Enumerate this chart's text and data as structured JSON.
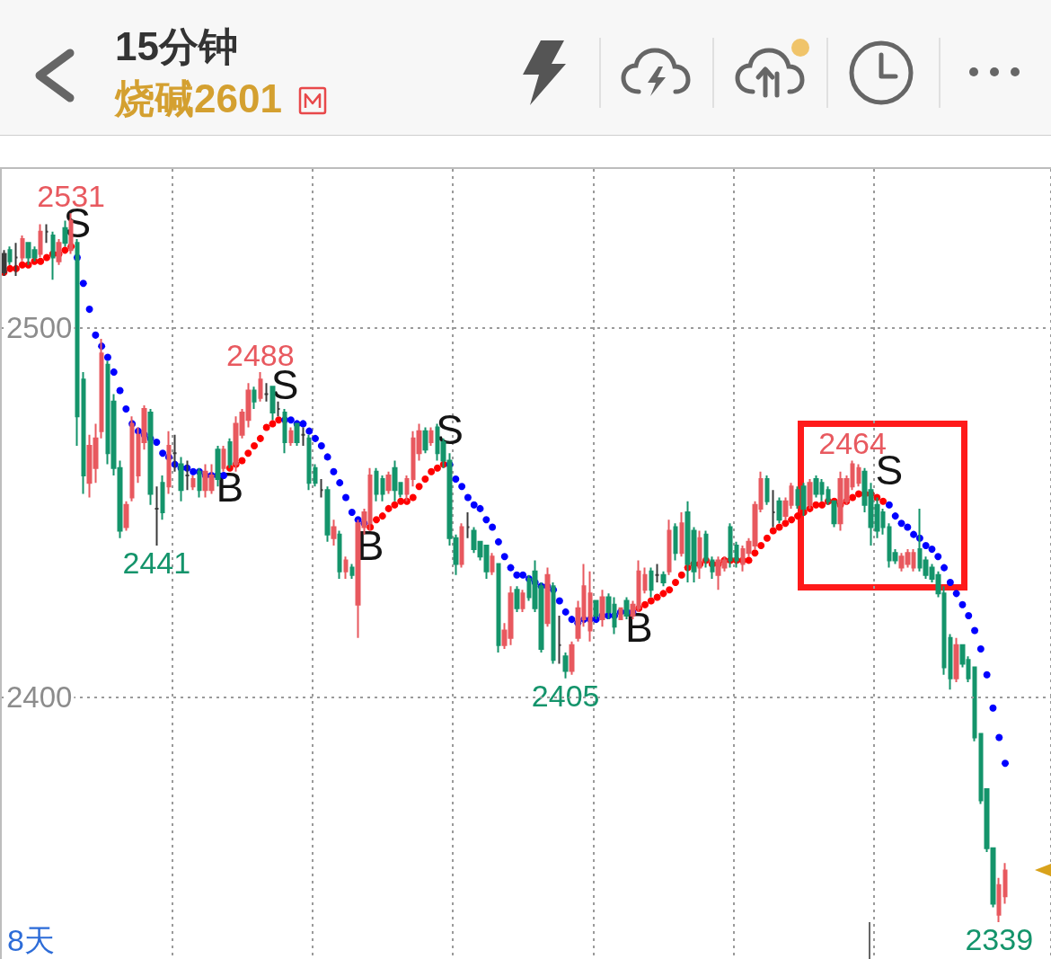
{
  "chart_data": {
    "type": "candlestick",
    "title": "15分钟",
    "subtitle": "烧碱2601",
    "annotations": [
      "8天"
    ],
    "categories": [
      null,
      null,
      null,
      null,
      null,
      null,
      null,
      null,
      null,
      null,
      null,
      null,
      null,
      null,
      null,
      null,
      null,
      null,
      null,
      null,
      null,
      null,
      null,
      null,
      null,
      null,
      null,
      null,
      null,
      null,
      null,
      null,
      null,
      null,
      null,
      null,
      null,
      null,
      null,
      null,
      null,
      null,
      null,
      null,
      null,
      null,
      null,
      null,
      null,
      null,
      null,
      null,
      null,
      null,
      null,
      null,
      null,
      null,
      null,
      null,
      null,
      null,
      null,
      null,
      null,
      null,
      null,
      null,
      null,
      null,
      null,
      null,
      null,
      null,
      null,
      null,
      null,
      null,
      null,
      null,
      null,
      null,
      null,
      null,
      null,
      null,
      null,
      null,
      null,
      null,
      null,
      null,
      null,
      null,
      null,
      null,
      null,
      null,
      null,
      null,
      null,
      null,
      null,
      null,
      null,
      null,
      null,
      null,
      null,
      null,
      null,
      null,
      null,
      null,
      null,
      null,
      null,
      null,
      null,
      null,
      null,
      null,
      null,
      null,
      null,
      null,
      null,
      null,
      null,
      null,
      null,
      null,
      null,
      null,
      null,
      null,
      null,
      null,
      null,
      null,
      null,
      null,
      null,
      null,
      null,
      null,
      null,
      null,
      null,
      null,
      null,
      null,
      null,
      null,
      null,
      null,
      null,
      null,
      null,
      null,
      null,
      null,
      null,
      null,
      null
    ],
    "ohlc": [
      [
        2520,
        2521,
        2514,
        2515
      ],
      [
        2521,
        2522,
        2517,
        2518
      ],
      [
        2519,
        2523,
        2514,
        2519
      ],
      [
        2519,
        2525,
        2518,
        2524
      ],
      [
        2523,
        2523,
        2517,
        2519
      ],
      [
        2521,
        2522,
        2518,
        2519
      ],
      [
        2520,
        2528,
        2519,
        2526
      ],
      [
        2526,
        2528,
        2523,
        2526
      ],
      [
        2525,
        2526,
        2513,
        2519
      ],
      [
        2518,
        2524,
        2517,
        2523
      ],
      [
        2527,
        2529,
        2522,
        2523
      ],
      [
        2521,
        2531,
        2520,
        2529
      ],
      [
        2523,
        2524,
        2468,
        2476
      ],
      [
        2486,
        2488,
        2455,
        2460
      ],
      [
        2458,
        2471,
        2454,
        2468
      ],
      [
        2462,
        2474,
        2458,
        2470
      ],
      [
        2472,
        2497,
        2470,
        2493
      ],
      [
        2490,
        2491,
        2463,
        2466
      ],
      [
        2480,
        2482,
        2460,
        2462
      ],
      [
        2462,
        2464,
        2443,
        2445
      ],
      [
        2446,
        2453,
        2445,
        2452
      ],
      [
        2454,
        2476,
        2453,
        2474
      ],
      [
        2460,
        2473,
        2458,
        2471
      ],
      [
        2469,
        2479,
        2467,
        2478
      ],
      [
        2477,
        2478,
        2452,
        2455
      ],
      [
        2451,
        2457,
        2441,
        2451
      ],
      [
        2458,
        2460,
        2448,
        2450
      ],
      [
        2457,
        2472,
        2455,
        2468
      ],
      [
        2466,
        2471,
        2461,
        2466
      ],
      [
        2463,
        2465,
        2453,
        2456
      ],
      [
        2460,
        2464,
        2456,
        2460
      ],
      [
        2457,
        2460,
        2456,
        2459
      ],
      [
        2461,
        2462,
        2454,
        2456
      ],
      [
        2456,
        2463,
        2454,
        2461
      ],
      [
        2456,
        2463,
        2455,
        2460
      ],
      [
        2467,
        2468,
        2457,
        2459
      ],
      [
        2462,
        2468,
        2461,
        2467
      ],
      [
        2469,
        2470,
        2462,
        2463
      ],
      [
        2463,
        2476,
        2461,
        2474
      ],
      [
        2471,
        2478,
        2470,
        2477
      ],
      [
        2475,
        2485,
        2473,
        2483
      ],
      [
        2483,
        2484,
        2478,
        2480
      ],
      [
        2481,
        2488,
        2480,
        2486
      ],
      [
        2482,
        2485,
        2480,
        2482
      ],
      [
        2484,
        2484,
        2475,
        2477
      ],
      [
        2478,
        2480,
        2476,
        2478
      ],
      [
        2477,
        2478,
        2466,
        2469
      ],
      [
        2469,
        2473,
        2468,
        2472
      ],
      [
        2474,
        2474,
        2468,
        2469
      ],
      [
        2471,
        2473,
        2468,
        2471
      ],
      [
        2470,
        2471,
        2456,
        2458
      ],
      [
        2462,
        2463,
        2457,
        2458
      ],
      [
        2456,
        2459,
        2454,
        2456
      ],
      [
        2456,
        2457,
        2442,
        2444
      ],
      [
        2443,
        2448,
        2441,
        2446
      ],
      [
        2444,
        2445,
        2432,
        2434
      ],
      [
        2434,
        2438,
        2432,
        2437
      ],
      [
        2435,
        2436,
        2432,
        2433
      ],
      [
        2425,
        2448,
        2416,
        2447
      ],
      [
        2446,
        2451,
        2444,
        2450
      ],
      [
        2447,
        2462,
        2445,
        2460
      ],
      [
        2461,
        2462,
        2453,
        2455
      ],
      [
        2459,
        2460,
        2453,
        2455
      ],
      [
        2456,
        2461,
        2455,
        2460
      ],
      [
        2462,
        2464,
        2453,
        2456
      ],
      [
        2458,
        2458,
        2454,
        2455
      ],
      [
        2455,
        2460,
        2453,
        2459
      ],
      [
        2459,
        2472,
        2457,
        2470
      ],
      [
        2466,
        2474,
        2464,
        2472
      ],
      [
        2472,
        2473,
        2466,
        2467
      ],
      [
        2469,
        2473,
        2468,
        2472
      ],
      [
        2473,
        2474,
        2464,
        2466
      ],
      [
        2469,
        2470,
        2462,
        2464
      ],
      [
        2464,
        2466,
        2441,
        2443
      ],
      [
        2443,
        2444,
        2433,
        2436
      ],
      [
        2436,
        2447,
        2435,
        2446
      ],
      [
        2446,
        2450,
        2443,
        2446
      ],
      [
        2445,
        2446,
        2439,
        2440
      ],
      [
        2442,
        2442,
        2437,
        2438
      ],
      [
        2441,
        2441,
        2432,
        2434
      ],
      [
        2434,
        2439,
        2433,
        2438
      ],
      [
        2436,
        2436,
        2412,
        2414
      ],
      [
        2414,
        2420,
        2413,
        2418
      ],
      [
        2416,
        2430,
        2414,
        2428
      ],
      [
        2429,
        2430,
        2423,
        2424
      ],
      [
        2424,
        2429,
        2423,
        2428
      ],
      [
        2432,
        2433,
        2426,
        2427
      ],
      [
        2434,
        2437,
        2423,
        2424
      ],
      [
        2430,
        2431,
        2412,
        2413
      ],
      [
        2420,
        2435,
        2419,
        2433
      ],
      [
        2430,
        2431,
        2409,
        2410
      ],
      [
        2414,
        2422,
        2409,
        2414
      ],
      [
        2411,
        2412,
        2405,
        2407
      ],
      [
        2407,
        2415,
        2406,
        2414
      ],
      [
        2416,
        2426,
        2415,
        2424
      ],
      [
        2421,
        2436,
        2419,
        2430
      ],
      [
        2418,
        2434,
        2415,
        2428
      ],
      [
        2426,
        2426,
        2421,
        2422
      ],
      [
        2421,
        2429,
        2419,
        2427
      ],
      [
        2427,
        2428,
        2421,
        2423
      ],
      [
        2425,
        2427,
        2417,
        2419
      ],
      [
        2421,
        2424,
        2421,
        2424
      ],
      [
        2426,
        2427,
        2421,
        2422
      ],
      [
        2422,
        2426,
        2421,
        2425
      ],
      [
        2424,
        2437,
        2423,
        2434
      ],
      [
        2429,
        2435,
        2428,
        2433
      ],
      [
        2434,
        2435,
        2427,
        2429
      ],
      [
        2433,
        2436,
        2431,
        2433
      ],
      [
        2433,
        2434,
        2430,
        2431
      ],
      [
        2434,
        2448,
        2433,
        2445
      ],
      [
        2446,
        2447,
        2437,
        2439
      ],
      [
        2439,
        2450,
        2438,
        2447
      ],
      [
        2450,
        2453,
        2431,
        2436
      ],
      [
        2445,
        2446,
        2431,
        2434
      ],
      [
        2435,
        2445,
        2432,
        2443
      ],
      [
        2444,
        2445,
        2435,
        2437
      ],
      [
        2437,
        2438,
        2432,
        2434
      ],
      [
        2433,
        2438,
        2429,
        2437
      ],
      [
        2435,
        2438,
        2434,
        2437
      ],
      [
        2446,
        2447,
        2435,
        2437
      ],
      [
        2441,
        2442,
        2435,
        2437
      ],
      [
        2436,
        2441,
        2434,
        2440
      ],
      [
        2439,
        2443,
        2438,
        2442
      ],
      [
        2441,
        2453,
        2440,
        2452
      ],
      [
        2451,
        2461,
        2450,
        2459
      ],
      [
        2459,
        2460,
        2452,
        2453
      ],
      [
        2450,
        2456,
        2446,
        2450
      ],
      [
        2453,
        2454,
        2447,
        2448
      ],
      [
        2449,
        2454,
        2448,
        2453
      ],
      [
        2452,
        2458,
        2451,
        2457
      ],
      [
        2456,
        2457,
        2451,
        2452
      ],
      [
        2457,
        2458,
        2449,
        2451
      ],
      [
        2452,
        2459,
        2451,
        2458
      ],
      [
        2459,
        2460,
        2454,
        2455
      ],
      [
        2458,
        2459,
        2453,
        2455
      ],
      [
        2456,
        2457,
        2452,
        2453
      ],
      [
        2453,
        2453,
        2446,
        2447
      ],
      [
        2447,
        2461,
        2445,
        2459
      ],
      [
        2453,
        2460,
        2452,
        2459
      ],
      [
        2457,
        2464,
        2456,
        2463
      ],
      [
        2458,
        2463,
        2457,
        2462
      ],
      [
        2461,
        2462,
        2450,
        2452
      ],
      [
        2456,
        2458,
        2441,
        2446
      ],
      [
        2452,
        2454,
        2443,
        2445
      ],
      [
        2450,
        2451,
        2444,
        2446
      ],
      [
        2446,
        2447,
        2435,
        2437
      ],
      [
        2439,
        2440,
        2436,
        2437
      ],
      [
        2435,
        2439,
        2434,
        2438
      ],
      [
        2436,
        2440,
        2435,
        2439
      ],
      [
        2435,
        2440,
        2434,
        2439
      ],
      [
        2440,
        2451,
        2434,
        2435
      ],
      [
        2437,
        2438,
        2432,
        2433
      ],
      [
        2435,
        2436,
        2431,
        2432
      ],
      [
        2433,
        2434,
        2427,
        2428
      ],
      [
        2428,
        2430,
        2406,
        2408
      ],
      [
        2416,
        2417,
        2402,
        2405
      ],
      [
        2405,
        2416,
        2404,
        2414
      ],
      [
        2414,
        2414,
        2408,
        2409
      ],
      [
        2410,
        2411,
        2404,
        2405
      ],
      [
        2408,
        2408,
        2388,
        2389
      ],
      [
        2390,
        2390,
        2371,
        2372
      ],
      [
        2375,
        2375,
        2358,
        2359
      ],
      [
        2359,
        2359,
        2343,
        2344
      ],
      [
        2341,
        2351,
        2339,
        2349
      ],
      [
        2346,
        2355,
        2344,
        2353
      ]
    ],
    "colors": [
      "#3a3a3a",
      "#14946b",
      "#3a3a3a",
      "#e8595f",
      "#14946b",
      "#14946b",
      "#e8595f",
      "#3a3a3a",
      "#14946b",
      "#e8595f",
      "#14946b",
      "#e8595f",
      "#14946b",
      "#14946b",
      "#e8595f",
      "#e8595f",
      "#e8595f",
      "#14946b",
      "#14946b",
      "#14946b",
      "#e8595f",
      "#e8595f",
      "#e8595f",
      "#e8595f",
      "#14946b",
      "#3a3a3a",
      "#14946b",
      "#e8595f",
      "#3a3a3a",
      "#14946b",
      "#3a3a3a",
      "#e8595f",
      "#14946b",
      "#e8595f",
      "#e8595f",
      "#14946b",
      "#e8595f",
      "#14946b",
      "#e8595f",
      "#e8595f",
      "#e8595f",
      "#14946b",
      "#e8595f",
      "#3a3a3a",
      "#14946b",
      "#3a3a3a",
      "#14946b",
      "#e8595f",
      "#14946b",
      "#3a3a3a",
      "#14946b",
      "#14946b",
      "#3a3a3a",
      "#14946b",
      "#e8595f",
      "#14946b",
      "#e8595f",
      "#14946b",
      "#e8595f",
      "#e8595f",
      "#e8595f",
      "#14946b",
      "#14946b",
      "#e8595f",
      "#14946b",
      "#14946b",
      "#e8595f",
      "#e8595f",
      "#e8595f",
      "#14946b",
      "#e8595f",
      "#14946b",
      "#14946b",
      "#14946b",
      "#14946b",
      "#e8595f",
      "#3a3a3a",
      "#14946b",
      "#14946b",
      "#14946b",
      "#e8595f",
      "#14946b",
      "#e8595f",
      "#e8595f",
      "#14946b",
      "#e8595f",
      "#14946b",
      "#14946b",
      "#14946b",
      "#e8595f",
      "#14946b",
      "#3a3a3a",
      "#14946b",
      "#e8595f",
      "#e8595f",
      "#e8595f",
      "#e8595f",
      "#14946b",
      "#e8595f",
      "#14946b",
      "#14946b",
      "#e8595f",
      "#14946b",
      "#e8595f",
      "#e8595f",
      "#e8595f",
      "#14946b",
      "#3a3a3a",
      "#14946b",
      "#e8595f",
      "#14946b",
      "#e8595f",
      "#14946b",
      "#14946b",
      "#e8595f",
      "#14946b",
      "#14946b",
      "#e8595f",
      "#e8595f",
      "#14946b",
      "#14946b",
      "#e8595f",
      "#e8595f",
      "#e8595f",
      "#e8595f",
      "#14946b",
      "#3a3a3a",
      "#14946b",
      "#e8595f",
      "#e8595f",
      "#14946b",
      "#14946b",
      "#e8595f",
      "#14946b",
      "#14946b",
      "#14946b",
      "#14946b",
      "#e8595f",
      "#e8595f",
      "#e8595f",
      "#e8595f",
      "#14946b",
      "#14946b",
      "#14946b",
      "#14946b",
      "#14946b",
      "#14946b",
      "#e8595f",
      "#e8595f",
      "#e8595f",
      "#14946b",
      "#14946b",
      "#14946b",
      "#14946b",
      "#14946b",
      "#14946b",
      "#e8595f",
      "#14946b",
      "#14946b",
      "#14946b",
      "#14946b",
      "#14946b",
      "#14946b",
      "#e8595f",
      "#e8595f"
    ],
    "value_labels": [
      null,
      null,
      null,
      null,
      null,
      null,
      null,
      null,
      null,
      null,
      null,
      "2531",
      null,
      null,
      null,
      null,
      null,
      null,
      null,
      null,
      null,
      null,
      null,
      null,
      null,
      "2441",
      null,
      null,
      null,
      null,
      null,
      null,
      null,
      null,
      null,
      null,
      null,
      null,
      null,
      null,
      null,
      null,
      "2488",
      null,
      null,
      null,
      null,
      null,
      null,
      null,
      null,
      null,
      null,
      null,
      null,
      null,
      null,
      null,
      null,
      null,
      null,
      null,
      null,
      null,
      null,
      null,
      null,
      null,
      null,
      null,
      null,
      null,
      null,
      null,
      null,
      null,
      null,
      null,
      null,
      null,
      null,
      null,
      null,
      null,
      null,
      null,
      null,
      null,
      null,
      null,
      null,
      null,
      "2405",
      null,
      null,
      null,
      null,
      null,
      null,
      null,
      null,
      null,
      null,
      null,
      null,
      null,
      null,
      null,
      null,
      null,
      null,
      null,
      null,
      null,
      null,
      null,
      null,
      null,
      null,
      null,
      null,
      null,
      null,
      null,
      null,
      null,
      null,
      null,
      null,
      null,
      null,
      null,
      null,
      null,
      null,
      null,
      null,
      null,
      null,
      "2464",
      null,
      null,
      null,
      null,
      null,
      null,
      null,
      null,
      null,
      null,
      null,
      null,
      null,
      null,
      null,
      null,
      null,
      null,
      null,
      null,
      null,
      null,
      null,
      "2339",
      null
    ],
    "series": [
      {
        "type": "scatter",
        "color": "#ff0000",
        "values": [
          2515,
          2516,
          2516,
          2517,
          2517,
          2518,
          2518,
          2519,
          2520,
          2520,
          2521,
          2522,
          null,
          null,
          null,
          null,
          null,
          null,
          null,
          null,
          null,
          null,
          null,
          null,
          null,
          null,
          null,
          null,
          null,
          null,
          null,
          null,
          null,
          null,
          null,
          null,
          null,
          2462,
          2463,
          2464,
          2466,
          2468,
          2470,
          2473,
          2474,
          2475,
          null,
          null,
          null,
          null,
          null,
          null,
          null,
          null,
          null,
          null,
          null,
          null,
          null,
          null,
          2446,
          2448,
          2449,
          2451,
          2452,
          2453,
          2453,
          2454,
          2457,
          2459,
          2461,
          2462,
          2463,
          null,
          null,
          null,
          null,
          null,
          null,
          null,
          null,
          null,
          null,
          null,
          null,
          null,
          null,
          null,
          null,
          null,
          null,
          null,
          null,
          null,
          null,
          null,
          null,
          null,
          null,
          null,
          null,
          null,
          null,
          null,
          2424,
          2425,
          2426,
          2427,
          2428,
          2429,
          2431,
          2433,
          2435,
          2436,
          2436,
          2437,
          2436,
          2436,
          2437,
          2437,
          2437,
          2437,
          2437,
          2439,
          2441,
          2443,
          2445,
          2446,
          2447,
          2448,
          2449,
          2450,
          2451,
          2452,
          2452,
          2453,
          2453,
          2452,
          2453,
          2454,
          2455,
          2455,
          2455,
          2454,
          2453,
          null,
          null,
          null,
          null,
          null,
          null,
          null,
          null,
          null,
          null,
          null,
          null,
          null,
          null,
          null,
          null,
          null,
          null,
          null,
          null
        ],
        "value_labels": [
          null,
          null,
          null,
          null,
          null,
          null,
          null,
          null,
          null,
          null,
          null,
          null,
          null,
          null,
          null,
          null,
          null,
          null,
          null,
          null,
          null,
          null,
          null,
          null,
          null,
          null,
          null,
          null,
          null,
          null,
          null,
          null,
          null,
          null,
          null,
          null,
          null,
          "B",
          null,
          null,
          null,
          null,
          null,
          null,
          null,
          null,
          null,
          null,
          null,
          null,
          null,
          null,
          null,
          null,
          null,
          null,
          null,
          null,
          null,
          null,
          "B",
          null,
          null,
          null,
          null,
          null,
          null,
          null,
          null,
          null,
          null,
          null,
          null,
          null,
          null,
          null,
          null,
          null,
          null,
          null,
          null,
          null,
          null,
          null,
          null,
          null,
          null,
          null,
          null,
          null,
          null,
          null,
          null,
          null,
          null,
          null,
          null,
          null,
          null,
          null,
          null,
          null,
          null,
          null,
          "B",
          null,
          null,
          null,
          null,
          null,
          null,
          null,
          null,
          null,
          null,
          null,
          null,
          null,
          null,
          null,
          null,
          null,
          null,
          null,
          null,
          null,
          null,
          null,
          null,
          null,
          null,
          null,
          null,
          null,
          null,
          null,
          null,
          null,
          null,
          null,
          null,
          null,
          null,
          null,
          null,
          null,
          null,
          null,
          null,
          null,
          null,
          null,
          null,
          null,
          null,
          null,
          null,
          null,
          null,
          null,
          null,
          null,
          null,
          null,
          null
        ]
      },
      {
        "type": "scatter",
        "color": "#0000ff",
        "values": [
          null,
          null,
          null,
          null,
          null,
          null,
          null,
          null,
          null,
          null,
          null,
          null,
          2519,
          2512,
          2505,
          2498,
          2495,
          2492,
          2488,
          2483,
          2478,
          2474,
          2472,
          2471,
          2470,
          2469,
          2466,
          2465,
          2463,
          2462,
          2462,
          2461,
          2461,
          2460,
          2460,
          2460,
          2460,
          null,
          null,
          null,
          null,
          null,
          null,
          null,
          null,
          null,
          2475,
          2475,
          2474,
          2474,
          2472,
          2470,
          2468,
          2465,
          2461,
          2458,
          2454,
          2450,
          2448,
          2447,
          null,
          null,
          null,
          null,
          null,
          null,
          null,
          null,
          null,
          null,
          null,
          null,
          null,
          2463,
          2459,
          2457,
          2454,
          2452,
          2451,
          2448,
          2446,
          2442,
          2438,
          2435,
          2433,
          2433,
          2432,
          2431,
          2430,
          2430,
          2429,
          2426,
          2423,
          2421,
          2420,
          2421,
          2421,
          2421,
          2422,
          2422,
          2422,
          2423,
          2423,
          2423,
          null,
          null,
          null,
          null,
          null,
          null,
          null,
          null,
          null,
          null,
          null,
          null,
          null,
          null,
          null,
          null,
          null,
          null,
          null,
          null,
          null,
          null,
          null,
          null,
          null,
          null,
          null,
          null,
          null,
          null,
          null,
          null,
          null,
          null,
          null,
          null,
          null,
          null,
          null,
          null,
          null,
          2452,
          2449,
          2447,
          2446,
          2444,
          2443,
          2441,
          2440,
          2438,
          2435,
          2431,
          2428,
          2425,
          2422,
          2418,
          2413,
          2406,
          2397,
          2389,
          2382
        ],
        "value_labels": [
          null,
          null,
          null,
          null,
          null,
          null,
          null,
          null,
          null,
          null,
          null,
          null,
          "S",
          null,
          null,
          null,
          null,
          null,
          null,
          null,
          null,
          null,
          null,
          null,
          null,
          null,
          null,
          null,
          null,
          null,
          null,
          null,
          null,
          null,
          null,
          null,
          null,
          null,
          null,
          null,
          null,
          null,
          null,
          null,
          null,
          null,
          "S",
          null,
          null,
          null,
          null,
          null,
          null,
          null,
          null,
          null,
          null,
          null,
          null,
          null,
          null,
          null,
          null,
          null,
          null,
          null,
          null,
          null,
          null,
          null,
          null,
          null,
          null,
          "S",
          null,
          null,
          null,
          null,
          null,
          null,
          null,
          null,
          null,
          null,
          null,
          null,
          null,
          null,
          null,
          null,
          null,
          null,
          null,
          null,
          null,
          null,
          null,
          null,
          null,
          null,
          null,
          null,
          null,
          null,
          null,
          null,
          null,
          null,
          null,
          null,
          null,
          null,
          null,
          null,
          null,
          null,
          null,
          null,
          null,
          null,
          null,
          null,
          null,
          null,
          null,
          null,
          null,
          null,
          null,
          null,
          null,
          null,
          null,
          null,
          null,
          null,
          null,
          null,
          null,
          null,
          null,
          null,
          null,
          null,
          null,
          "S",
          null,
          null,
          null,
          null,
          null,
          null,
          null,
          null,
          null,
          null,
          null,
          null,
          null,
          null,
          null,
          null,
          null,
          null,
          null
        ]
      }
    ],
    "ylim": [
      2329,
      2543
    ],
    "yticks": [
      2400,
      2500
    ],
    "grid": true,
    "tick_labels": "y",
    "marker": "circle"
  }
}
